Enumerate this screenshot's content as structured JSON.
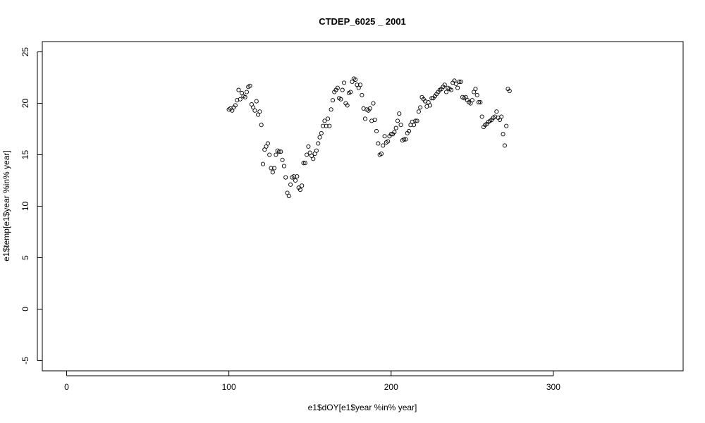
{
  "chart_data": {
    "type": "scatter",
    "title": "CTDEP_6025 _ 2001",
    "xlabel": "e1$dOY[e1$year %in% year]",
    "ylabel": "e1$temp[e1$year %in% year]",
    "xlim": [
      -15,
      380
    ],
    "ylim": [
      -6,
      26
    ],
    "xticks": [
      0,
      100,
      200,
      300
    ],
    "yticks": [
      -5,
      0,
      5,
      10,
      15,
      20,
      25
    ],
    "grid": false,
    "marker": "open-circle",
    "colors": {
      "points": "#000000",
      "frame": "#000000",
      "background": "#ffffff"
    },
    "x": [
      100,
      101,
      102,
      103,
      104,
      105,
      106,
      107,
      108,
      109,
      110,
      111,
      112,
      113,
      114,
      115,
      116,
      117,
      118,
      119,
      120,
      121,
      122,
      123,
      124,
      125,
      126,
      127,
      128,
      129,
      130,
      131,
      132,
      133,
      134,
      135,
      136,
      137,
      138,
      139,
      140,
      141,
      142,
      143,
      144,
      145,
      146,
      147,
      148,
      149,
      150,
      151,
      152,
      153,
      154,
      155,
      156,
      157,
      158,
      159,
      160,
      161,
      162,
      163,
      164,
      165,
      166,
      167,
      168,
      169,
      170,
      171,
      172,
      173,
      174,
      175,
      176,
      177,
      178,
      179,
      180,
      181,
      182,
      183,
      184,
      185,
      186,
      187,
      188,
      189,
      190,
      191,
      192,
      193,
      194,
      195,
      196,
      197,
      198,
      199,
      200,
      201,
      202,
      203,
      204,
      205,
      206,
      207,
      208,
      209,
      210,
      211,
      212,
      213,
      214,
      215,
      216,
      217,
      218,
      219,
      220,
      221,
      222,
      223,
      224,
      225,
      226,
      227,
      228,
      229,
      230,
      231,
      232,
      233,
      234,
      235,
      236,
      237,
      238,
      239,
      240,
      241,
      242,
      243,
      244,
      245,
      246,
      247,
      248,
      249,
      250,
      251,
      252,
      253,
      254,
      255,
      256,
      257,
      258,
      259,
      260,
      261,
      262,
      263,
      264,
      265,
      266,
      267,
      268,
      269,
      270,
      271,
      272,
      273
    ],
    "y": [
      19.4,
      19.5,
      19.3,
      19.6,
      19.8,
      20.3,
      21.3,
      20.4,
      21.0,
      20.7,
      20.6,
      21.1,
      21.6,
      21.7,
      19.9,
      19.6,
      19.3,
      20.2,
      18.9,
      19.2,
      17.9,
      14.1,
      15.5,
      15.8,
      16.1,
      15.0,
      13.7,
      13.3,
      13.7,
      15.0,
      15.4,
      15.3,
      15.3,
      14.5,
      13.9,
      12.8,
      11.3,
      11.0,
      12.1,
      12.8,
      12.9,
      12.5,
      12.9,
      11.8,
      11.6,
      12.0,
      14.2,
      14.2,
      15.0,
      15.8,
      15.2,
      14.9,
      14.6,
      15.1,
      15.4,
      16.1,
      16.7,
      17.1,
      17.8,
      18.3,
      17.8,
      18.5,
      17.8,
      19.4,
      20.3,
      21.1,
      21.3,
      21.5,
      20.5,
      20.4,
      21.3,
      22.0,
      20.0,
      19.8,
      21.0,
      21.1,
      22.1,
      22.4,
      22.3,
      21.8,
      21.5,
      21.8,
      20.8,
      19.5,
      18.5,
      19.4,
      19.3,
      19.5,
      18.3,
      20.0,
      18.4,
      17.3,
      16.1,
      15.0,
      15.1,
      15.9,
      16.8,
      16.2,
      16.3,
      16.8,
      17.0,
      17.0,
      17.2,
      17.6,
      18.3,
      19.0,
      17.9,
      16.4,
      16.5,
      16.5,
      17.1,
      17.3,
      17.9,
      18.2,
      17.9,
      18.3,
      18.3,
      19.2,
      19.6,
      20.6,
      20.4,
      20.2,
      19.7,
      20.1,
      19.8,
      20.5,
      20.5,
      20.7,
      20.9,
      21.1,
      21.3,
      21.4,
      21.6,
      21.8,
      21.1,
      21.5,
      21.4,
      21.3,
      22.0,
      22.2,
      21.9,
      21.5,
      22.1,
      22.1,
      20.6,
      20.5,
      20.6,
      20.3,
      20.1,
      20.0,
      20.3,
      21.1,
      21.4,
      20.8,
      20.1,
      20.1,
      18.7,
      17.7,
      17.9,
      18.0,
      18.2,
      18.3,
      18.4,
      18.6,
      18.7,
      19.2,
      18.6,
      18.4,
      18.7,
      17.0,
      15.9,
      17.8,
      21.4,
      21.2
    ]
  }
}
